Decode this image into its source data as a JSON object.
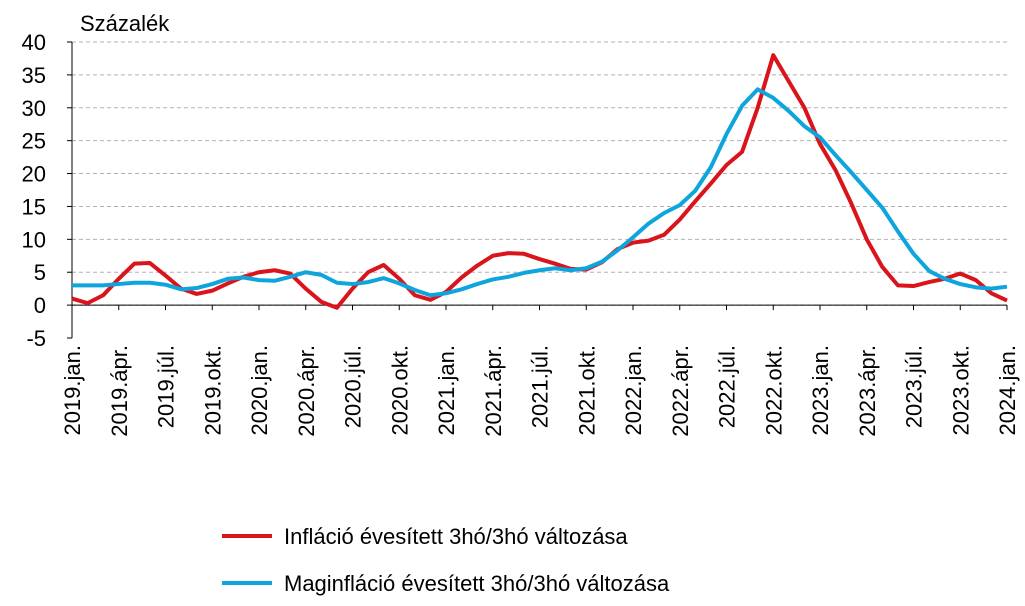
{
  "chart_data": {
    "type": "line",
    "y_axis_label": "Százalék",
    "categories": [
      "2019.jan.",
      null,
      null,
      "2019.ápr.",
      null,
      null,
      "2019.júl.",
      null,
      null,
      "2019.okt.",
      null,
      null,
      "2020.jan.",
      null,
      null,
      "2020.ápr.",
      null,
      null,
      "2020.júl.",
      null,
      null,
      "2020.okt.",
      null,
      null,
      "2021.jan.",
      null,
      null,
      "2021.ápr.",
      null,
      null,
      "2021.júl.",
      null,
      null,
      "2021.okt.",
      null,
      null,
      "2022.jan.",
      null,
      null,
      "2022.ápr.",
      null,
      null,
      "2022.júl.",
      null,
      null,
      "2022.okt.",
      null,
      null,
      "2023.jan.",
      null,
      null,
      "2023.ápr.",
      null,
      null,
      "2023.júl.",
      null,
      null,
      "2023.okt.",
      null,
      null,
      "2024.jan."
    ],
    "series": [
      {
        "name": "Infláció évesített 3hó/3hó változása",
        "color": "#d9141b",
        "values": [
          1.0,
          0.3,
          1.5,
          4.0,
          6.3,
          6.4,
          4.5,
          2.5,
          1.7,
          2.2,
          3.3,
          4.3,
          5.0,
          5.3,
          4.8,
          2.5,
          0.5,
          -0.4,
          2.5,
          5.0,
          6.1,
          4.0,
          1.5,
          0.8,
          2.0,
          4.2,
          6.0,
          7.5,
          7.9,
          7.8,
          7.0,
          6.3,
          5.5,
          5.4,
          6.5,
          8.5,
          9.5,
          9.8,
          10.7,
          13.0,
          15.8,
          18.5,
          21.3,
          23.3,
          30.0,
          38.0,
          34.0,
          30.0,
          24.5,
          20.5,
          15.5,
          10.0,
          5.8,
          3.0,
          2.9,
          3.5,
          4.0,
          4.8,
          3.8,
          1.8,
          0.7
        ]
      },
      {
        "name": "Maginfláció évesített 3hó/3hó változása",
        "color": "#0ea5dd",
        "values": [
          3.0,
          3.0,
          3.0,
          3.2,
          3.4,
          3.4,
          3.1,
          2.4,
          2.6,
          3.2,
          4.0,
          4.2,
          3.8,
          3.7,
          4.3,
          5.0,
          4.6,
          3.4,
          3.2,
          3.5,
          4.1,
          3.3,
          2.3,
          1.5,
          1.8,
          2.4,
          3.2,
          3.9,
          4.3,
          4.9,
          5.3,
          5.6,
          5.3,
          5.6,
          6.6,
          8.3,
          10.3,
          12.4,
          14.0,
          15.2,
          17.4,
          21.0,
          26.0,
          30.3,
          32.8,
          31.5,
          29.5,
          27.2,
          25.5,
          22.8,
          20.2,
          17.5,
          14.8,
          11.2,
          7.8,
          5.2,
          4.0,
          3.2,
          2.7,
          2.5,
          2.8
        ]
      }
    ],
    "ylim": [
      -5,
      40
    ],
    "yticks": [
      -5,
      0,
      5,
      10,
      15,
      20,
      25,
      30,
      35,
      40
    ],
    "grid": true
  }
}
